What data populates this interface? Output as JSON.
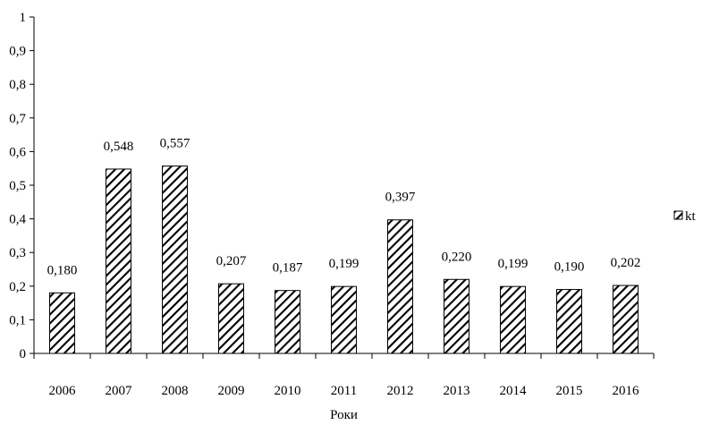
{
  "chart_data": {
    "type": "bar",
    "categories": [
      "2006",
      "2007",
      "2008",
      "2009",
      "2010",
      "2011",
      "2012",
      "2013",
      "2014",
      "2015",
      "2016"
    ],
    "series": [
      {
        "name": "kt",
        "values": [
          0.18,
          0.548,
          0.557,
          0.207,
          0.187,
          0.199,
          0.397,
          0.22,
          0.199,
          0.19,
          0.202
        ],
        "data_labels": [
          "0,180",
          "0,548",
          "0,557",
          "0,207",
          "0,187",
          "0,199",
          "0,397",
          "0,220",
          "0,199",
          "0,190",
          "0,202"
        ],
        "fill": "diagonal-hatch",
        "color": "#000000"
      }
    ],
    "y_ticks": [
      0,
      0.1,
      0.2,
      0.3,
      0.4,
      0.5,
      0.6,
      0.7,
      0.8,
      0.9,
      1
    ],
    "y_tick_labels": [
      "0",
      "0,1",
      "0,2",
      "0,3",
      "0,4",
      "0,5",
      "0,6",
      "0,7",
      "0,8",
      "0,9",
      "1"
    ],
    "title": "",
    "xlabel": "Роки",
    "ylabel": "",
    "ylim": [
      0,
      1
    ],
    "grid": false,
    "legend_position": "right"
  }
}
